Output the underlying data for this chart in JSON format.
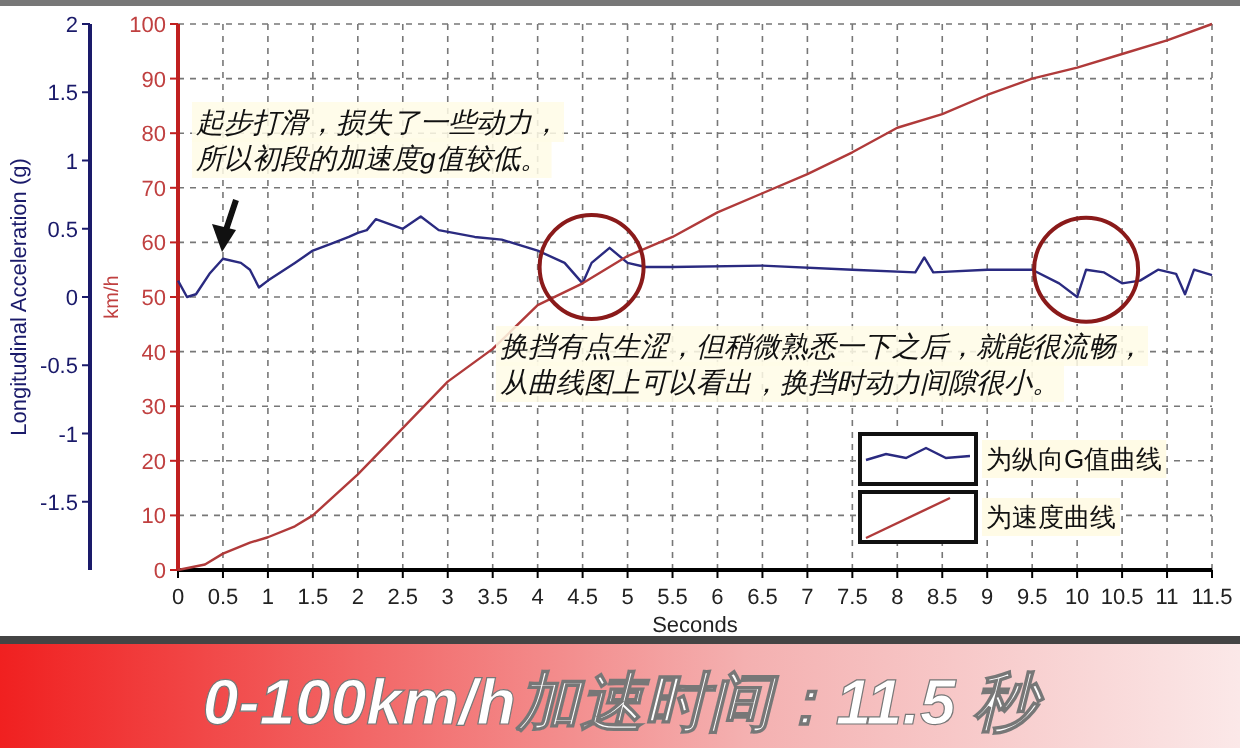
{
  "chart_data": {
    "type": "line",
    "title": "0-100km/h加速时间：11.5 秒",
    "xlabel": "Seconds",
    "ylabel": "Longitudinal Acceleration (g)",
    "y2label": "km/h",
    "annotations": [
      "起步打滑，损失了一些动力，",
      "所以初段的加速度g值较低。",
      "换挡有点生涩，但稍微熟悉一下之后，就能很流畅，",
      "从曲线图上可以看出，换挡时动力间隙很小。"
    ],
    "legend": "bottom right",
    "grid": true,
    "line_style": "solid",
    "xlim": [
      0,
      11.5
    ],
    "xticks": [
      0,
      0.5,
      1,
      1.5,
      2,
      2.5,
      3,
      3.5,
      4,
      4.5,
      5,
      5.5,
      6,
      6.5,
      7,
      7.5,
      8,
      8.5,
      9,
      9.5,
      10,
      10.5,
      11,
      11.5
    ],
    "ylim": [
      -2,
      2
    ],
    "yticks": [
      -1.5,
      -1,
      -0.5,
      0,
      0.5,
      1,
      1.5,
      2
    ],
    "y2lim": [
      0,
      100
    ],
    "y2ticks": [
      0,
      10,
      20,
      30,
      40,
      50,
      60,
      70,
      80,
      90,
      100
    ],
    "series": [
      {
        "name": "为纵向G值曲线",
        "color": "#2a2a80",
        "x": [
          0,
          0.1,
          0.2,
          0.35,
          0.5,
          0.7,
          0.8,
          0.9,
          1.0,
          1.3,
          1.5,
          1.7,
          1.9,
          2.0,
          2.1,
          2.2,
          2.5,
          2.7,
          2.9,
          3.3,
          3.6,
          4.0,
          4.3,
          4.5,
          4.6,
          4.8,
          5.0,
          5.2,
          5.5,
          6.5,
          7.5,
          8.2,
          8.3,
          8.4,
          9.0,
          9.5,
          9.8,
          10.0,
          10.1,
          10.3,
          10.5,
          10.7,
          10.9,
          11.1,
          11.2,
          11.3,
          11.5
        ],
        "values": [
          0.12,
          0.0,
          0.02,
          0.17,
          0.28,
          0.25,
          0.2,
          0.07,
          0.12,
          0.25,
          0.34,
          0.39,
          0.44,
          0.47,
          0.49,
          0.57,
          0.5,
          0.59,
          0.49,
          0.44,
          0.42,
          0.34,
          0.25,
          0.1,
          0.25,
          0.36,
          0.25,
          0.22,
          0.22,
          0.23,
          0.2,
          0.18,
          0.29,
          0.18,
          0.2,
          0.2,
          0.1,
          0.0,
          0.2,
          0.18,
          0.1,
          0.12,
          0.2,
          0.17,
          0.02,
          0.2,
          0.16
        ]
      },
      {
        "name": "为速度曲线",
        "color": "#b03a3a",
        "axis": "y2",
        "x": [
          0,
          0.3,
          0.5,
          0.8,
          1.0,
          1.3,
          1.5,
          2.0,
          2.5,
          3.0,
          3.5,
          4.0,
          4.5,
          5.0,
          5.5,
          6.0,
          6.5,
          7.0,
          7.5,
          8.0,
          8.5,
          9.0,
          9.5,
          10.0,
          10.5,
          11.0,
          11.5
        ],
        "values": [
          0,
          1,
          3,
          5,
          6,
          8,
          10,
          17.5,
          26,
          34.5,
          40.5,
          48.5,
          52.5,
          57.5,
          61,
          65.5,
          69,
          72.5,
          76.5,
          81,
          83.5,
          87,
          90,
          92,
          94.5,
          97,
          100
        ]
      }
    ]
  }
}
